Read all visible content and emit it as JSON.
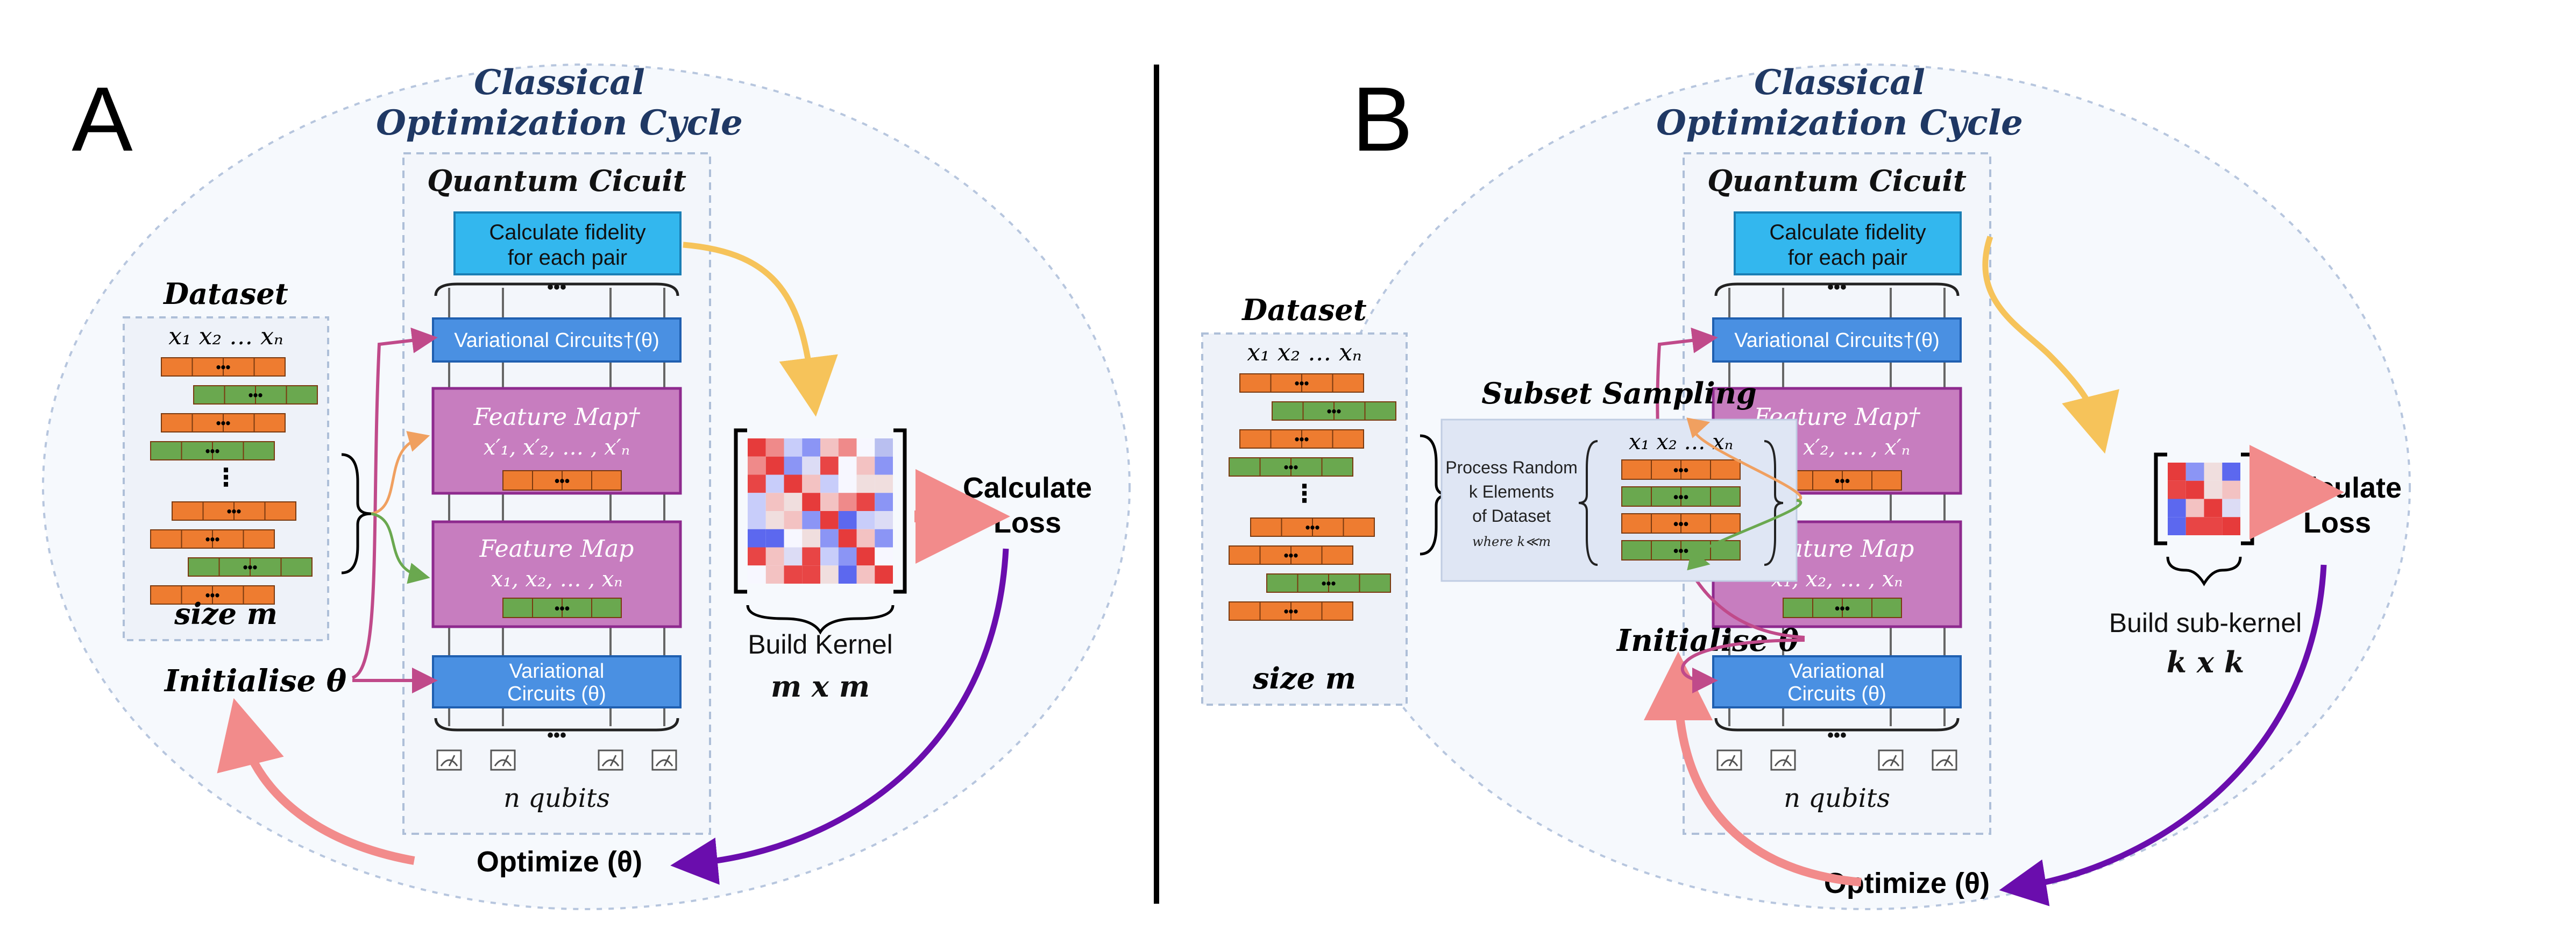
{
  "panels": [
    {
      "letter": "A",
      "cycle_title_1": "Classical",
      "cycle_title_2": "Optimization Cycle",
      "circuit_title": "Quantum Cicuit",
      "fidelity_line1": "Calculate fidelity",
      "fidelity_line2": "for each pair",
      "var_dagger": "Variational Circuits†(θ)",
      "fm_dagger_title": "Feature Map†",
      "fm_dagger_vars": "x′₁, x′₂, … , x′ₙ",
      "fm_title": "Feature Map",
      "fm_vars": "x₁, x₂, … , xₙ",
      "var_line1": "Variational",
      "var_line2": "Circuits (θ)",
      "qubits": "n qubits",
      "dataset_title": "Dataset",
      "dataset_vars": "x₁ x₂ … xₙ",
      "dataset_size": "size m",
      "initialise": "Initialise θ",
      "kernel_label": "Build Kernel",
      "kernel_dims": "m x m",
      "loss_line1": "Calculate",
      "loss_line2": "Loss",
      "optimize": "Optimize (θ)",
      "dots": "•••",
      "vdots": "⋮",
      "hdots": "•••"
    },
    {
      "letter": "B",
      "cycle_title_1": "Classical",
      "cycle_title_2": "Optimization Cycle",
      "circuit_title": "Quantum Cicuit",
      "fidelity_line1": "Calculate fidelity",
      "fidelity_line2": "for each pair",
      "var_dagger": "Variational Circuits†(θ)",
      "fm_dagger_title": "Feature Map†",
      "fm_dagger_vars": "x′₁, x′₂, … , x′ₙ",
      "fm_title": "Feature Map",
      "fm_vars": "x₁, x₂, … , xₙ",
      "var_line1": "Variational",
      "var_line2": "Circuits (θ)",
      "qubits": "n qubits",
      "dataset_title": "Dataset",
      "dataset_vars": "x₁ x₂ … xₙ",
      "dataset_size": "size m",
      "initialise": "Initialise θ",
      "kernel_label": "Build sub-kernel",
      "kernel_dims": "k x k",
      "loss_line1": "Calculate",
      "loss_line2": "Loss",
      "optimize": "Optimize (θ)",
      "subset_title": "Subset Sampling",
      "subset_line1": "Process Random",
      "subset_line2": "k Elements",
      "subset_line3": "of Dataset",
      "subset_line4": "where k≪m",
      "subset_vars": "x₁ x₂ … xₙ",
      "dots": "•••",
      "vdots": "⋮",
      "hdots": "•••"
    }
  ],
  "colors": {
    "navy": "#1f3864",
    "fidelity_fill": "#33b7ee",
    "var_fill": "#4a90e2",
    "fm_fill": "#c77dbf",
    "fm_border": "#8e2a8e",
    "orange": "#ee7c30",
    "green": "#6aa84f",
    "yellow_arrow": "#f6c35a",
    "pink_arrow": "#f28b8b",
    "purple_arrow": "#6a0dad",
    "magenta_arrow": "#c04a8a",
    "ellipse_border": "#b7c6de"
  }
}
